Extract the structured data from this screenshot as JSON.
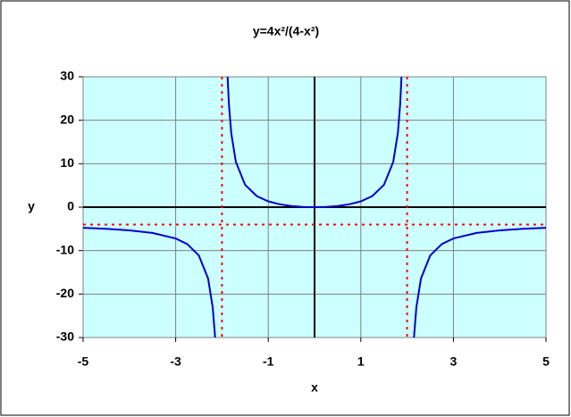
{
  "chart_data": {
    "type": "line",
    "title": "y=4x²/(4-x²)",
    "x_label": "x",
    "y_label": "y",
    "x": [
      -5,
      -4.5,
      -4,
      -3.5,
      -3,
      -2.75,
      -2.5,
      -2.3,
      -2.2,
      -2.15,
      -2.14,
      null,
      -1.88,
      -1.85,
      -1.8,
      -1.7,
      -1.5,
      -1.25,
      -1,
      -0.75,
      -0.5,
      -0.25,
      0,
      0.25,
      0.5,
      0.75,
      1,
      1.25,
      1.5,
      1.7,
      1.8,
      1.85,
      1.88,
      null,
      2.14,
      2.15,
      2.2,
      2.3,
      2.5,
      2.75,
      3,
      3.5,
      4,
      4.5,
      5
    ],
    "series": [
      {
        "name": "y",
        "color": "#0000cc",
        "values": [
          -4.762,
          -4.985,
          -5.333,
          -5.939,
          -7.2,
          -8.491,
          -11.111,
          -16.403,
          -23.048,
          -29.703,
          -31.605,
          null,
          30.364,
          23.706,
          17.053,
          10.414,
          5.143,
          2.564,
          1.333,
          0.655,
          0.267,
          0.063,
          0,
          0.063,
          0.267,
          0.655,
          1.333,
          2.564,
          5.143,
          10.414,
          17.053,
          23.706,
          30.364,
          null,
          -31.605,
          -29.703,
          -23.048,
          -16.403,
          -11.111,
          -8.491,
          -7.2,
          -5.939,
          -5.333,
          -4.985,
          -4.762
        ]
      }
    ],
    "asymptotes": {
      "x": [
        -2,
        2
      ],
      "y": [
        -4
      ],
      "color": "#ff0000"
    },
    "origin": [
      0,
      0
    ],
    "xlim": [
      -5,
      5
    ],
    "xticks": [
      -5,
      -3,
      -1,
      1,
      3,
      5
    ],
    "ylim": [
      -30,
      30
    ],
    "yticks": [
      -30,
      -20,
      -10,
      0,
      10,
      20,
      30
    ],
    "grid": true,
    "plot_background": "#ccffff"
  }
}
